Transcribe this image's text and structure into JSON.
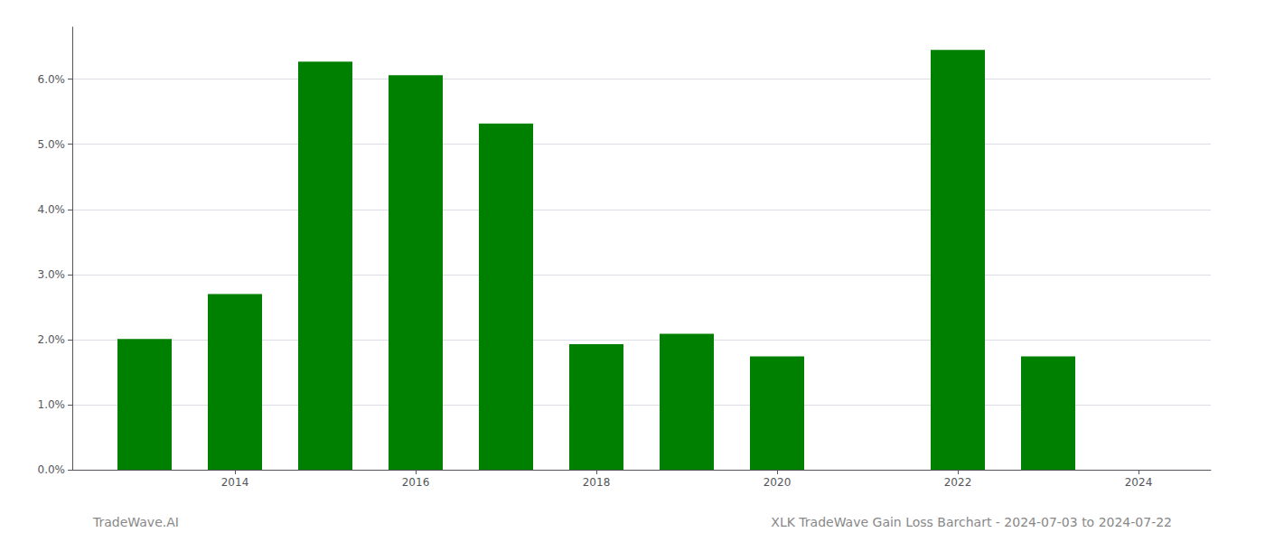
{
  "chart_data": {
    "type": "bar",
    "title": "XLK TradeWave Gain Loss Barchart - 2024-07-03 to 2024-07-22",
    "annotations": [
      "TradeWave.AI"
    ],
    "x": [
      2013,
      2014,
      2015,
      2016,
      2017,
      2018,
      2019,
      2020,
      2022,
      2023
    ],
    "values": [
      0.0201,
      0.027,
      0.0627,
      0.0606,
      0.0532,
      0.0193,
      0.0209,
      0.0174,
      0.0645,
      0.0174
    ],
    "color": "#008000",
    "xlim": [
      2012.2,
      2024.8
    ],
    "xticks": [
      2014,
      2016,
      2018,
      2020,
      2022,
      2024
    ],
    "ylim": [
      0,
      0.068
    ],
    "yticks": [
      {
        "value": 0.0,
        "label": "0.0%"
      },
      {
        "value": 0.01,
        "label": "1.0%"
      },
      {
        "value": 0.02,
        "label": "2.0%"
      },
      {
        "value": 0.03,
        "label": "3.0%"
      },
      {
        "value": 0.04,
        "label": "4.0%"
      },
      {
        "value": 0.05,
        "label": "5.0%"
      },
      {
        "value": 0.06,
        "label": "6.0%"
      }
    ],
    "grid": true
  }
}
